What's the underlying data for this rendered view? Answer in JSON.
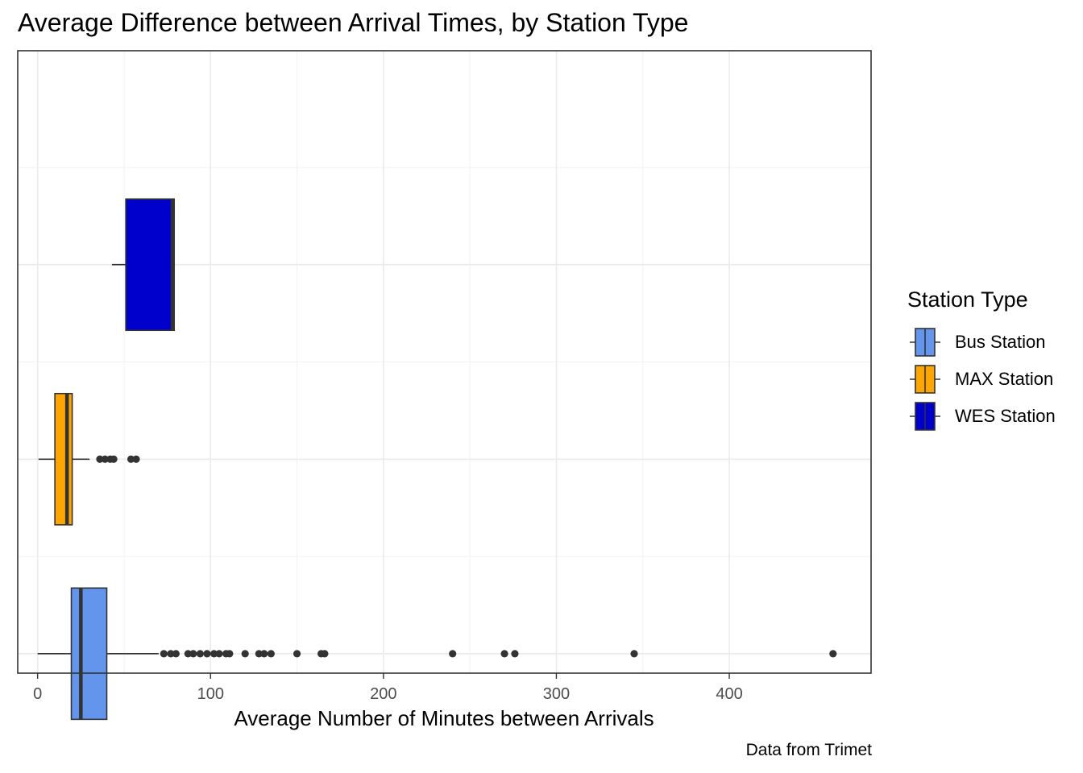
{
  "chart_data": {
    "type": "boxplot",
    "title": "Average Difference between Arrival Times, by Station Type",
    "xlabel": "Average Number of Minutes between Arrivals",
    "ylabel": "",
    "caption": "Data from Trimet",
    "xlim": [
      -11.5,
      482
    ],
    "x_ticks": [
      0,
      100,
      200,
      300,
      400
    ],
    "x_tick_labels": [
      "0",
      "100",
      "200",
      "300",
      "400"
    ],
    "grid": true,
    "legend": {
      "title": "Station Type",
      "position": "right"
    },
    "series": [
      {
        "name": "Bus Station",
        "color": "#6495ED",
        "min": 0,
        "q1": 19.5,
        "median": 25,
        "q3": 40,
        "max": 70,
        "outliers": [
          73,
          77,
          80,
          87,
          90,
          94,
          98,
          102,
          105,
          109,
          111,
          120,
          128,
          131,
          135,
          150,
          164,
          166,
          240,
          270,
          276,
          345,
          460
        ]
      },
      {
        "name": "MAX Station",
        "color": "#FFA500",
        "min": 0.5,
        "q1": 10,
        "median": 17,
        "q3": 20,
        "max": 30,
        "outliers": [
          36,
          39,
          42,
          44,
          54,
          57
        ]
      },
      {
        "name": "WES Station",
        "color": "#0000CD",
        "min": 43,
        "q1": 51,
        "median": 78,
        "q3": 79,
        "max": 79,
        "outliers": []
      }
    ]
  }
}
